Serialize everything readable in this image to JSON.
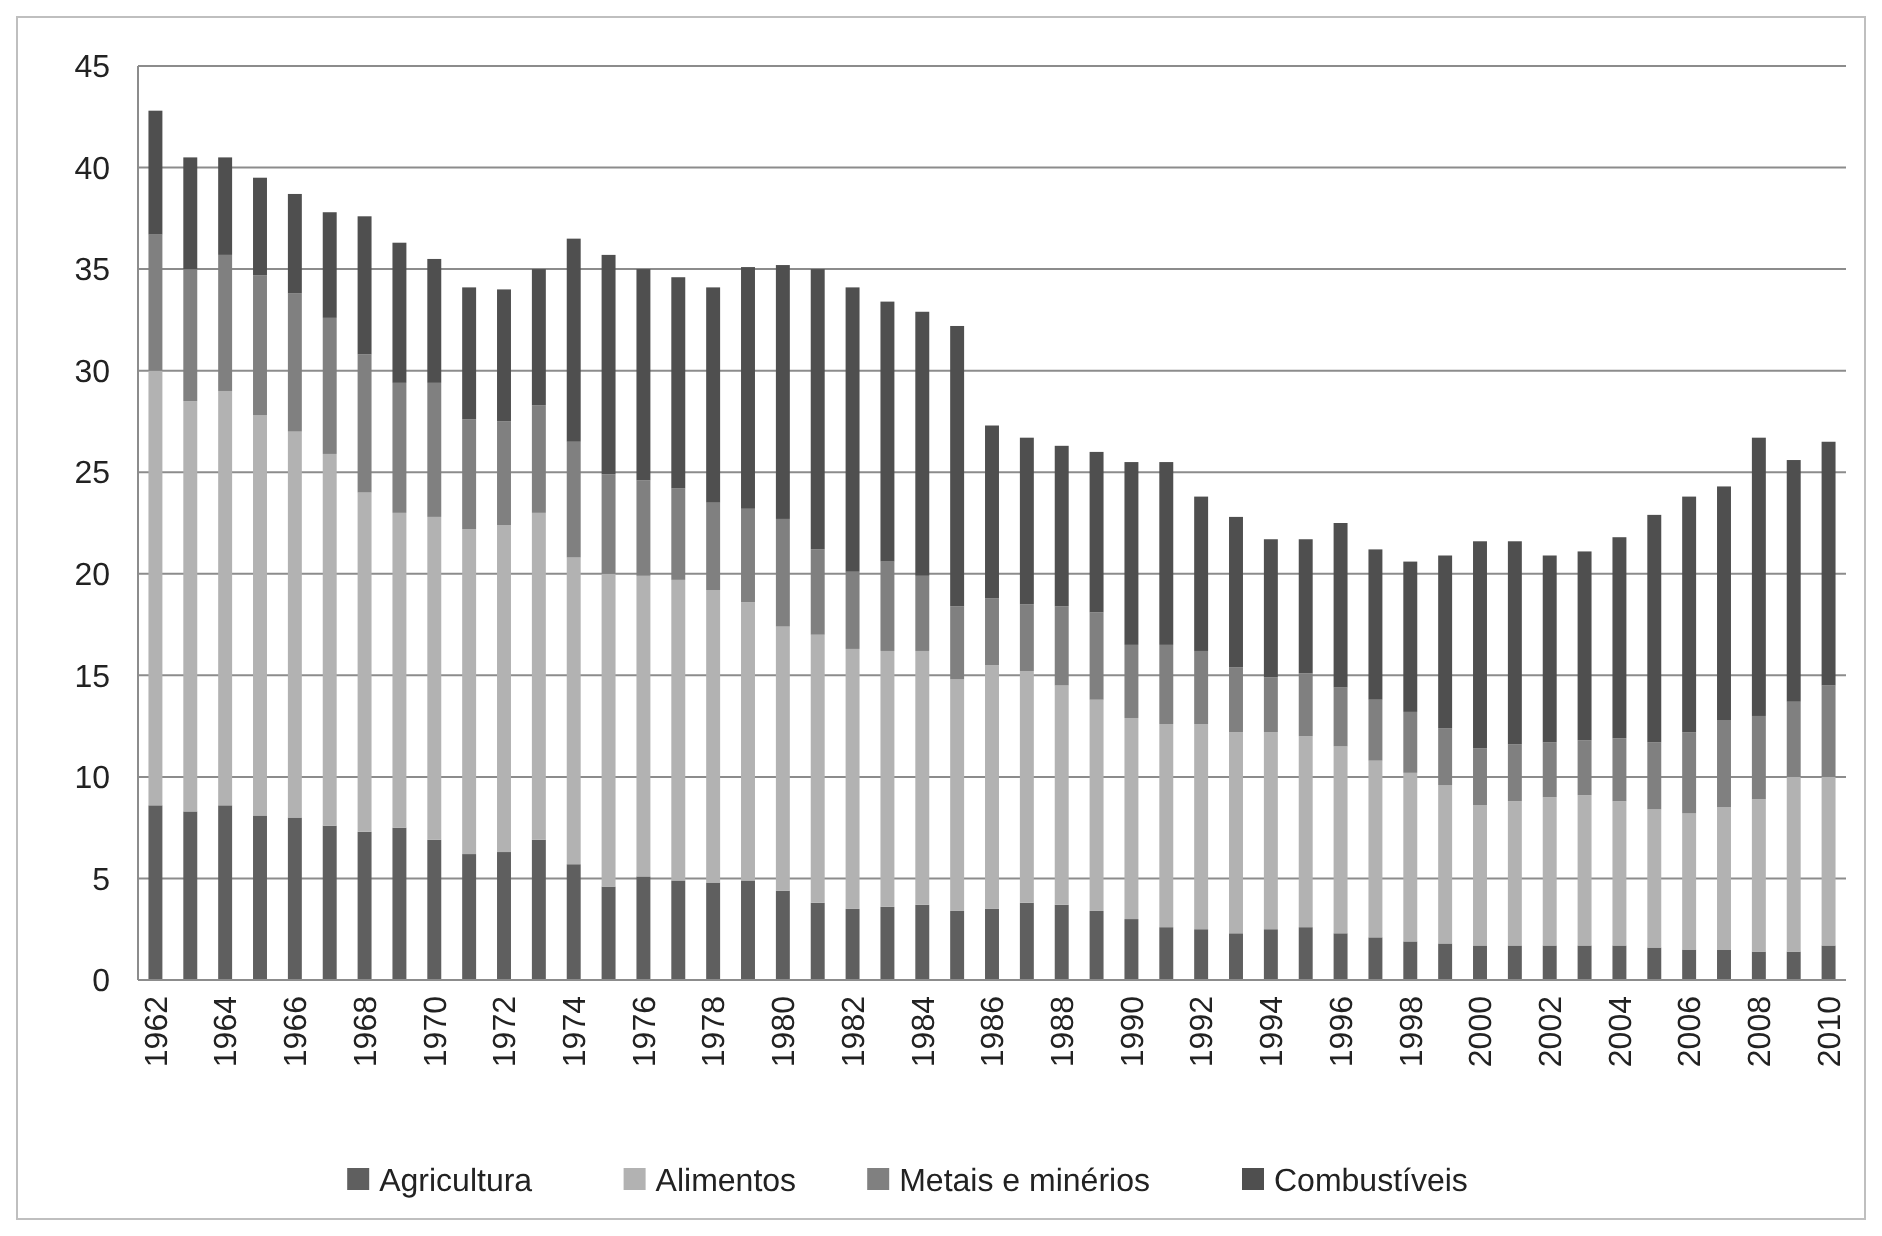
{
  "chart_data": {
    "type": "bar",
    "stacked": true,
    "categories": [
      "1962",
      null,
      "1964",
      null,
      "1966",
      null,
      "1968",
      null,
      "1970",
      null,
      "1972",
      null,
      "1974",
      null,
      "1976",
      null,
      "1978",
      null,
      "1980",
      null,
      "1982",
      null,
      "1984",
      null,
      "1986",
      null,
      "1988",
      null,
      "1990",
      null,
      "1992",
      null,
      "1994",
      null,
      "1996",
      null,
      "1998",
      null,
      "2000",
      null,
      "2002",
      null,
      "2004",
      null,
      "2006",
      null,
      "2008",
      null,
      "2010"
    ],
    "series": [
      {
        "name": "Agricultura",
        "color": "#5f5f5f",
        "values": [
          8.6,
          8.3,
          8.6,
          8.1,
          8.0,
          7.6,
          7.3,
          7.5,
          6.9,
          6.2,
          6.3,
          6.9,
          5.7,
          4.6,
          5.1,
          4.9,
          4.8,
          4.9,
          4.4,
          3.8,
          3.5,
          3.6,
          3.7,
          3.4,
          3.5,
          3.8,
          3.7,
          3.4,
          3.0,
          2.6,
          2.5,
          2.3,
          2.5,
          2.6,
          2.3,
          2.1,
          1.9,
          1.8,
          1.7,
          1.7,
          1.7,
          1.7,
          1.7,
          1.6,
          1.5,
          1.5,
          1.4,
          1.4,
          1.7
        ]
      },
      {
        "name": "Alimentos",
        "color": "#b2b2b2",
        "values": [
          21.4,
          20.2,
          20.4,
          19.7,
          19.0,
          18.3,
          16.7,
          15.5,
          15.9,
          16.0,
          16.1,
          16.1,
          15.1,
          15.4,
          14.8,
          14.8,
          14.4,
          13.7,
          13.0,
          13.2,
          12.8,
          12.6,
          12.5,
          11.4,
          12.0,
          11.4,
          10.8,
          10.4,
          9.9,
          10.0,
          10.1,
          9.9,
          9.7,
          9.4,
          9.2,
          8.7,
          8.3,
          7.8,
          6.9,
          7.1,
          7.3,
          7.4,
          7.1,
          6.8,
          6.7,
          7.0,
          7.5,
          8.6,
          8.3
        ]
      },
      {
        "name": "Metais e minérios",
        "color": "#808080",
        "values": [
          6.7,
          6.5,
          6.7,
          6.9,
          6.8,
          6.7,
          6.8,
          6.4,
          6.6,
          5.4,
          5.1,
          5.3,
          5.7,
          4.9,
          4.7,
          4.5,
          4.3,
          4.6,
          5.3,
          4.2,
          3.8,
          4.4,
          3.7,
          3.6,
          3.3,
          3.3,
          3.9,
          4.3,
          3.6,
          3.9,
          3.6,
          3.2,
          2.7,
          3.1,
          2.9,
          3.0,
          3.0,
          2.8,
          2.8,
          2.8,
          2.7,
          2.7,
          3.1,
          3.3,
          4.0,
          4.3,
          4.1,
          3.7,
          4.5
        ]
      },
      {
        "name": "Combustíveis",
        "color": "#4f4f4f",
        "values": [
          6.1,
          5.5,
          4.8,
          4.8,
          4.9,
          5.2,
          6.8,
          6.9,
          6.1,
          6.5,
          6.5,
          6.7,
          10.0,
          10.8,
          10.4,
          10.4,
          10.6,
          11.9,
          12.5,
          13.8,
          14.0,
          12.8,
          13.0,
          13.8,
          8.5,
          8.2,
          7.9,
          7.9,
          9.0,
          9.0,
          7.6,
          7.4,
          6.8,
          6.6,
          8.1,
          7.4,
          7.4,
          8.5,
          10.2,
          10.0,
          9.2,
          9.3,
          9.9,
          11.2,
          11.6,
          11.5,
          13.7,
          11.9,
          12.0
        ]
      }
    ],
    "ylim": [
      0,
      45
    ],
    "yticks": [
      0,
      5,
      10,
      15,
      20,
      25,
      30,
      35,
      40,
      45
    ],
    "grid": "y",
    "legend": "bottom"
  }
}
